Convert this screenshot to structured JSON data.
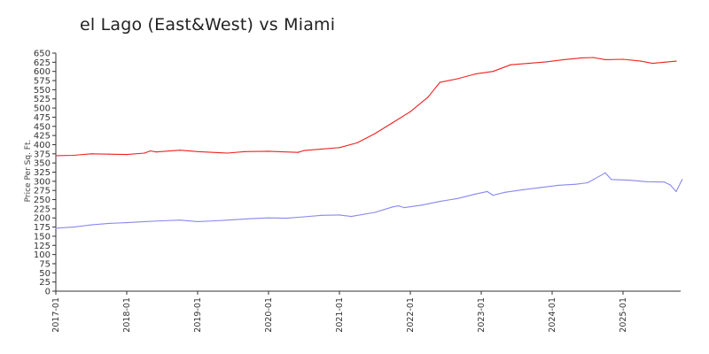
{
  "chart_data": {
    "type": "line",
    "title": "el Lago (East&West) vs Miami",
    "ylabel": "Price Per Sq. Ft.",
    "xlabel": "",
    "ylim": [
      0,
      650
    ],
    "yticks": [
      0,
      25,
      50,
      75,
      100,
      125,
      150,
      175,
      200,
      225,
      250,
      275,
      300,
      325,
      350,
      375,
      400,
      425,
      450,
      475,
      500,
      525,
      550,
      575,
      600,
      625,
      650
    ],
    "xlim": [
      "2017-01",
      "2025-10"
    ],
    "xticks": [
      "2017-01",
      "2018-01",
      "2019-01",
      "2020-01",
      "2021-01",
      "2022-01",
      "2023-01",
      "2024-01",
      "2025-01"
    ],
    "grid": false,
    "legend": "none",
    "series": [
      {
        "color": "#ee2222",
        "points": [
          [
            "2017-01",
            370
          ],
          [
            "2017-04",
            371
          ],
          [
            "2017-07",
            375
          ],
          [
            "2017-10",
            374
          ],
          [
            "2018-01",
            373
          ],
          [
            "2018-04",
            377
          ],
          [
            "2018-05",
            383
          ],
          [
            "2018-06",
            380
          ],
          [
            "2018-10",
            385
          ],
          [
            "2019-01",
            381
          ],
          [
            "2019-06",
            377
          ],
          [
            "2019-09",
            381
          ],
          [
            "2020-01",
            382
          ],
          [
            "2020-06",
            379
          ],
          [
            "2020-07",
            384
          ],
          [
            "2020-10",
            388
          ],
          [
            "2021-01",
            392
          ],
          [
            "2021-04",
            405
          ],
          [
            "2021-07",
            430
          ],
          [
            "2021-10",
            460
          ],
          [
            "2022-01",
            490
          ],
          [
            "2022-04",
            530
          ],
          [
            "2022-06",
            570
          ],
          [
            "2022-09",
            580
          ],
          [
            "2022-12",
            593
          ],
          [
            "2023-03",
            600
          ],
          [
            "2023-06",
            618
          ],
          [
            "2023-09",
            622
          ],
          [
            "2023-12",
            626
          ],
          [
            "2024-03",
            632
          ],
          [
            "2024-06",
            637
          ],
          [
            "2024-08",
            638
          ],
          [
            "2024-10",
            632
          ],
          [
            "2025-01",
            633
          ],
          [
            "2025-04",
            628
          ],
          [
            "2025-06",
            622
          ],
          [
            "2025-08",
            625
          ],
          [
            "2025-10",
            628
          ]
        ]
      },
      {
        "color": "#8888ee",
        "points": [
          [
            "2017-01",
            172
          ],
          [
            "2017-04",
            175
          ],
          [
            "2017-07",
            181
          ],
          [
            "2017-10",
            185
          ],
          [
            "2018-01",
            187
          ],
          [
            "2018-04",
            190
          ],
          [
            "2018-07",
            192
          ],
          [
            "2018-10",
            194
          ],
          [
            "2019-01",
            190
          ],
          [
            "2019-04",
            192
          ],
          [
            "2019-07",
            195
          ],
          [
            "2019-10",
            198
          ],
          [
            "2020-01",
            200
          ],
          [
            "2020-04",
            199
          ],
          [
            "2020-07",
            203
          ],
          [
            "2020-10",
            207
          ],
          [
            "2021-01",
            208
          ],
          [
            "2021-03",
            204
          ],
          [
            "2021-07",
            215
          ],
          [
            "2021-10",
            230
          ],
          [
            "2021-11",
            233
          ],
          [
            "2021-12",
            228
          ],
          [
            "2022-03",
            235
          ],
          [
            "2022-06",
            245
          ],
          [
            "2022-09",
            253
          ],
          [
            "2022-12",
            265
          ],
          [
            "2023-02",
            272
          ],
          [
            "2023-03",
            262
          ],
          [
            "2023-05",
            270
          ],
          [
            "2023-08",
            277
          ],
          [
            "2023-11",
            283
          ],
          [
            "2024-02",
            289
          ],
          [
            "2024-05",
            292
          ],
          [
            "2024-07",
            296
          ],
          [
            "2024-08",
            305
          ],
          [
            "2024-10",
            323
          ],
          [
            "2024-11",
            305
          ],
          [
            "2025-02",
            303
          ],
          [
            "2025-05",
            299
          ],
          [
            "2025-08",
            298
          ],
          [
            "2025-09",
            290
          ],
          [
            "2025-10",
            272
          ],
          [
            "2025-11",
            305
          ]
        ]
      }
    ]
  }
}
